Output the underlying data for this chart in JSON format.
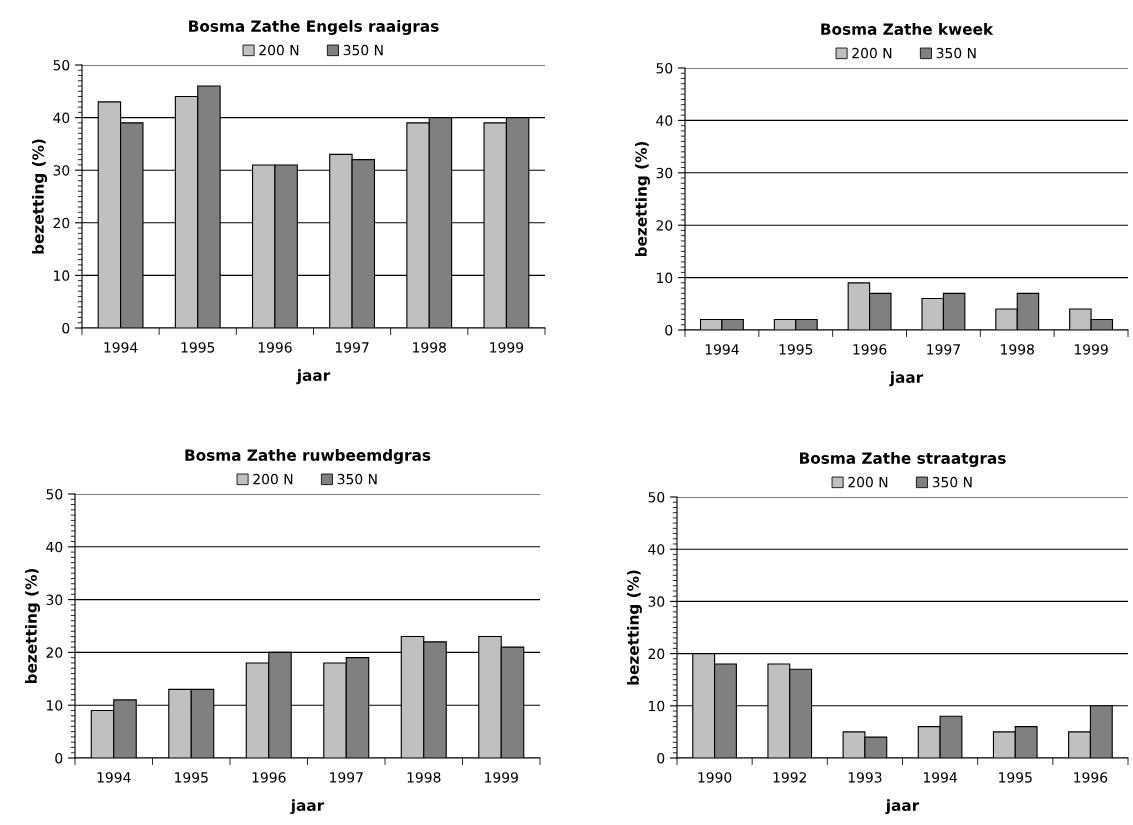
{
  "chart_data": [
    {
      "type": "bar",
      "title": "Bosma Zathe Engels raaigras",
      "xlabel": "jaar",
      "ylabel": "bezetting (%)",
      "categories": [
        "1994",
        "1995",
        "1996",
        "1997",
        "1998",
        "1999"
      ],
      "series": [
        {
          "name": "200 N",
          "color": "#c0c0c0",
          "values": [
            43,
            44,
            31,
            33,
            39,
            39
          ]
        },
        {
          "name": "350 N",
          "color": "#808080",
          "values": [
            39,
            46,
            31,
            32,
            40,
            40
          ]
        }
      ],
      "ylim": [
        0,
        50
      ],
      "yticks": [
        0,
        10,
        20,
        30,
        40,
        50
      ],
      "grid": "y",
      "legend": "top"
    },
    {
      "type": "bar",
      "title": "Bosma Zathe kweek",
      "xlabel": "jaar",
      "ylabel": "bezetting (%)",
      "categories": [
        "1994",
        "1995",
        "1996",
        "1997",
        "1998",
        "1999"
      ],
      "series": [
        {
          "name": "200 N",
          "color": "#c0c0c0",
          "values": [
            2,
            2,
            9,
            6,
            4,
            4
          ]
        },
        {
          "name": "350 N",
          "color": "#808080",
          "values": [
            2,
            2,
            7,
            7,
            7,
            2
          ]
        }
      ],
      "ylim": [
        0,
        50
      ],
      "yticks": [
        0,
        10,
        20,
        30,
        40,
        50
      ],
      "grid": "y",
      "legend": "top"
    },
    {
      "type": "bar",
      "title": "Bosma Zathe ruwbeemdgras",
      "xlabel": "jaar",
      "ylabel": "bezetting (%)",
      "categories": [
        "1994",
        "1995",
        "1996",
        "1997",
        "1998",
        "1999"
      ],
      "series": [
        {
          "name": "200 N",
          "color": "#c0c0c0",
          "values": [
            9,
            13,
            18,
            18,
            23,
            23
          ]
        },
        {
          "name": "350 N",
          "color": "#808080",
          "values": [
            11,
            13,
            20,
            19,
            22,
            21
          ]
        }
      ],
      "ylim": [
        0,
        50
      ],
      "yticks": [
        0,
        10,
        20,
        30,
        40,
        50
      ],
      "grid": "y",
      "legend": "top"
    },
    {
      "type": "bar",
      "title": "Bosma Zathe straatgras",
      "xlabel": "jaar",
      "ylabel": "bezetting (%)",
      "categories": [
        "1990",
        "1992",
        "1993",
        "1994",
        "1995",
        "1996"
      ],
      "series": [
        {
          "name": "200 N",
          "color": "#c0c0c0",
          "values": [
            20,
            18,
            5,
            6,
            5,
            5
          ]
        },
        {
          "name": "350 N",
          "color": "#808080",
          "values": [
            18,
            17,
            4,
            8,
            6,
            10
          ]
        }
      ],
      "ylim": [
        0,
        50
      ],
      "yticks": [
        0,
        10,
        20,
        30,
        40,
        50
      ],
      "grid": "y",
      "legend": "top"
    }
  ]
}
